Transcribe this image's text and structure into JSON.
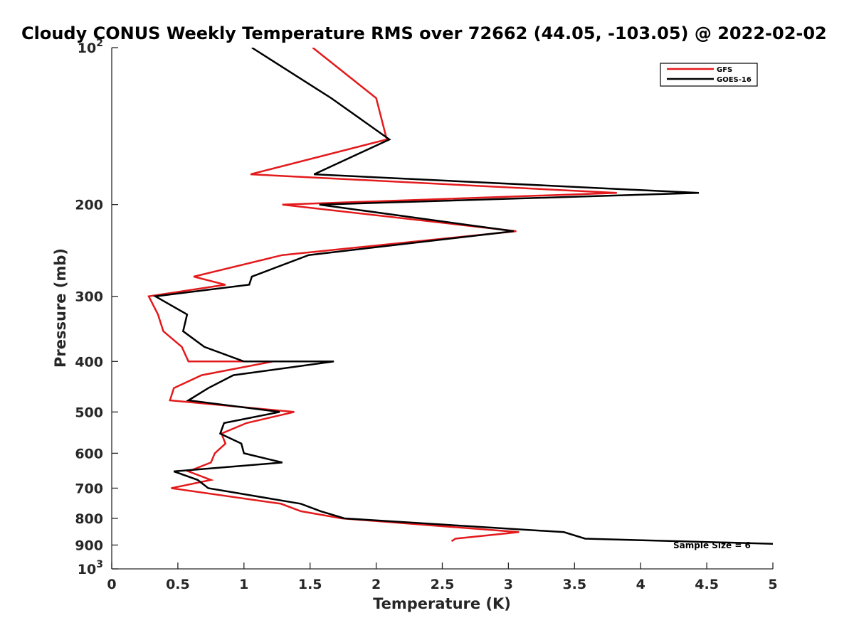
{
  "chart_data": {
    "type": "line",
    "title": "Cloudy CONUS Weekly Temperature RMS over 72662 (44.05, -103.05) @ 2022-02-02",
    "xlabel": "Temperature (K)",
    "ylabel": "Pressure (mb)",
    "xlim": [
      0,
      5
    ],
    "ylim": [
      100,
      1000
    ],
    "y_scale": "log",
    "y_direction": "reversed",
    "x_ticks": [
      "0",
      "0.5",
      "1",
      "1.5",
      "2",
      "2.5",
      "3",
      "3.5",
      "4",
      "4.5",
      "5"
    ],
    "x_tick_values": [
      0,
      0.5,
      1,
      1.5,
      2,
      2.5,
      3,
      3.5,
      4,
      4.5,
      5
    ],
    "y_ticks": [
      {
        "value": 100,
        "base": "10",
        "exp": "2"
      },
      {
        "value": 200,
        "label": "200"
      },
      {
        "value": 300,
        "label": "300"
      },
      {
        "value": 400,
        "label": "400"
      },
      {
        "value": 500,
        "label": "500"
      },
      {
        "value": 600,
        "label": "600"
      },
      {
        "value": 700,
        "label": "700"
      },
      {
        "value": 800,
        "label": "800"
      },
      {
        "value": 900,
        "label": "900"
      },
      {
        "value": 1000,
        "base": "10",
        "exp": "3"
      }
    ],
    "legend_position": "top-right",
    "annotation": "Sample Size = 6",
    "series": [
      {
        "name": "GFS",
        "color": "#e31a1c",
        "points": [
          [
            1.52,
            100
          ],
          [
            2.0,
            125
          ],
          [
            2.08,
            150
          ],
          [
            1.05,
            175
          ],
          [
            3.82,
            190
          ],
          [
            1.29,
            200
          ],
          [
            3.06,
            225
          ],
          [
            1.29,
            250
          ],
          [
            0.62,
            275
          ],
          [
            0.86,
            285
          ],
          [
            0.28,
            300
          ],
          [
            0.35,
            325
          ],
          [
            0.39,
            350
          ],
          [
            0.53,
            375
          ],
          [
            0.58,
            400
          ],
          [
            1.22,
            400
          ],
          [
            0.68,
            425
          ],
          [
            0.47,
            450
          ],
          [
            0.44,
            475
          ],
          [
            1.38,
            500
          ],
          [
            1.02,
            525
          ],
          [
            0.83,
            550
          ],
          [
            0.86,
            575
          ],
          [
            0.78,
            600
          ],
          [
            0.75,
            625
          ],
          [
            0.58,
            650
          ],
          [
            0.75,
            675
          ],
          [
            0.45,
            700
          ],
          [
            1.28,
            750
          ],
          [
            1.43,
            775
          ],
          [
            1.74,
            800
          ],
          [
            3.08,
            850
          ],
          [
            2.6,
            875
          ],
          [
            2.57,
            885
          ]
        ]
      },
      {
        "name": "GOES-16",
        "color": "#000000",
        "points": [
          [
            1.06,
            100
          ],
          [
            1.66,
            125
          ],
          [
            2.1,
            150
          ],
          [
            1.53,
            175
          ],
          [
            4.44,
            190
          ],
          [
            1.57,
            200
          ],
          [
            3.04,
            225
          ],
          [
            1.49,
            250
          ],
          [
            1.06,
            275
          ],
          [
            1.04,
            285
          ],
          [
            0.33,
            300
          ],
          [
            0.57,
            325
          ],
          [
            0.54,
            350
          ],
          [
            0.7,
            375
          ],
          [
            1.0,
            400
          ],
          [
            1.68,
            400
          ],
          [
            0.92,
            425
          ],
          [
            0.73,
            450
          ],
          [
            0.58,
            475
          ],
          [
            1.27,
            500
          ],
          [
            0.85,
            525
          ],
          [
            0.82,
            550
          ],
          [
            0.98,
            575
          ],
          [
            1.0,
            600
          ],
          [
            1.29,
            625
          ],
          [
            0.47,
            650
          ],
          [
            0.65,
            675
          ],
          [
            0.73,
            700
          ],
          [
            1.43,
            750
          ],
          [
            1.58,
            775
          ],
          [
            1.76,
            800
          ],
          [
            3.42,
            850
          ],
          [
            3.58,
            875
          ],
          [
            5.0,
            895
          ]
        ]
      }
    ]
  }
}
